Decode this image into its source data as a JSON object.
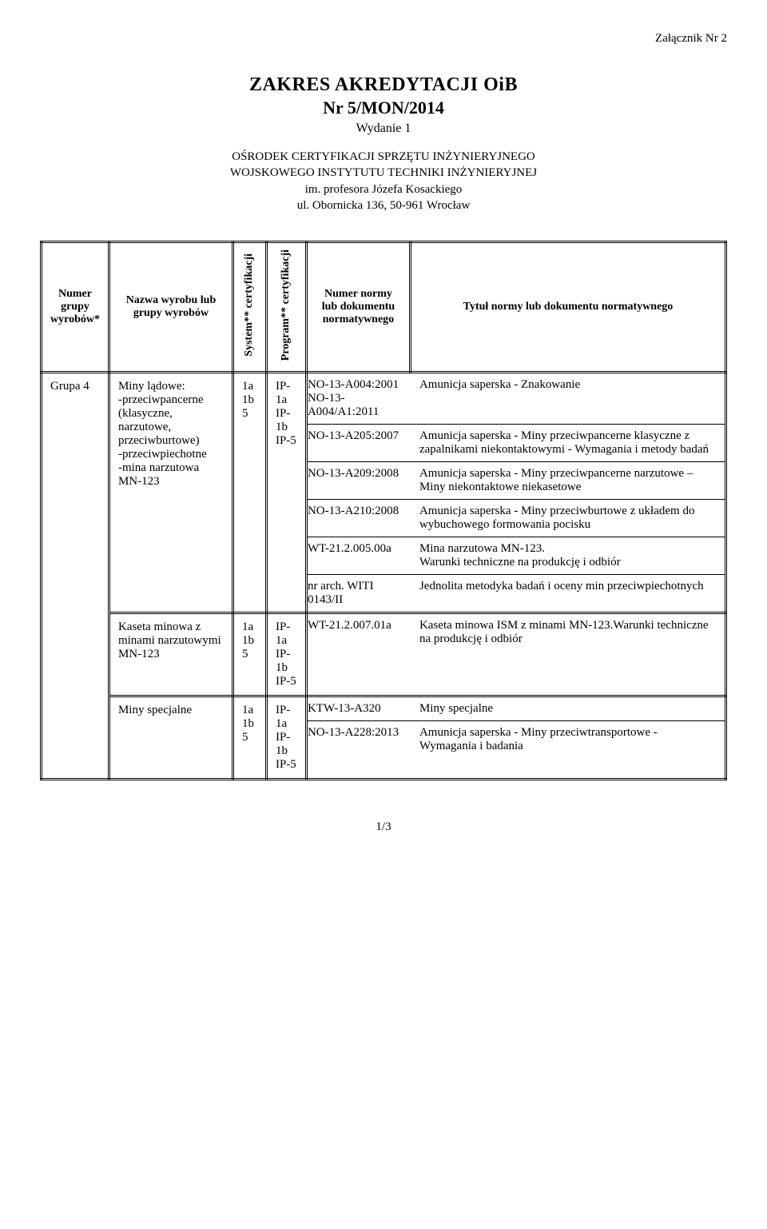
{
  "attachment": "Załącznik Nr 2",
  "title_main": "ZAKRES AKREDYTACJI OiB",
  "title_nr": "Nr 5/MON/2014",
  "edition": "Wydanie 1",
  "org_line1": "OŚRODEK CERTYFIKACJI SPRZĘTU INŻYNIERYJNEGO",
  "org_line2": "WOJSKOWEGO INSTYTUTU TECHNIKI INŻYNIERYJNEJ",
  "org_line3": "im. profesora Józefa Kosackiego",
  "org_line4": "ul. Obornicka 136, 50-961 Wrocław",
  "headers": {
    "col1": "Numer grupy wyrobów*",
    "col2": "Nazwa wyrobu lub grupy wyrobów",
    "col3": "System** certyfikacji",
    "col4": "Program** certyfikacji",
    "col5": "Numer normy lub dokumentu normatywnego",
    "col6": "Tytuł normy lub dokumentu normatywnego"
  },
  "group_label": "Grupa 4",
  "row1": {
    "nazwa": "Miny lądowe:\n-przeciwpancerne (klasyczne, narzutowe, przeciwburtowe)\n-przeciwpiechotne\n-mina narzutowa MN-123",
    "system": "1a\n1b\n5",
    "program": "IP-1a\nIP-1b\nIP-5",
    "norms": [
      {
        "code": "NO-13-A004:2001\nNO-13-A004/A1:2011",
        "title": "Amunicja saperska - Znakowanie"
      },
      {
        "code": "NO-13-A205:2007",
        "title": "Amunicja saperska - Miny przeciwpancerne klasyczne z zapalnikami niekontaktowymi - Wymagania i metody badań"
      },
      {
        "code": "NO-13-A209:2008",
        "title": "Amunicja saperska - Miny przeciwpancerne narzutowe – Miny niekontaktowe niekasetowe"
      },
      {
        "code": "NO-13-A210:2008",
        "title": "Amunicja saperska - Miny przeciwburtowe z układem do wybuchowego formowania pocisku"
      },
      {
        "code": "WT-21.2.005.00a",
        "title": "Mina narzutowa MN-123.\nWarunki techniczne na produkcję i odbiór"
      },
      {
        "code": "nr arch. WITI 0143/II",
        "title": "Jednolita metodyka badań i oceny min przeciwpiechotnych"
      }
    ]
  },
  "row2": {
    "nazwa": "Kaseta minowa z minami narzutowymi MN-123",
    "system": "1a\n1b\n5",
    "program": "IP-1a\nIP-1b\nIP-5",
    "norms": [
      {
        "code": "WT-21.2.007.01a",
        "title": "Kaseta minowa ISM z minami MN-123.Warunki techniczne na produkcję i odbiór"
      }
    ]
  },
  "row3": {
    "nazwa": "Miny specjalne",
    "system": "1a\n1b\n5",
    "program": "IP-1a\nIP-1b\nIP-5",
    "norms": [
      {
        "code": "KTW-13-A320",
        "title": "Miny specjalne"
      },
      {
        "code": "NO-13-A228:2013",
        "title": "Amunicja saperska - Miny przeciwtransportowe - Wymagania i badania"
      }
    ]
  },
  "footer": "1/3"
}
